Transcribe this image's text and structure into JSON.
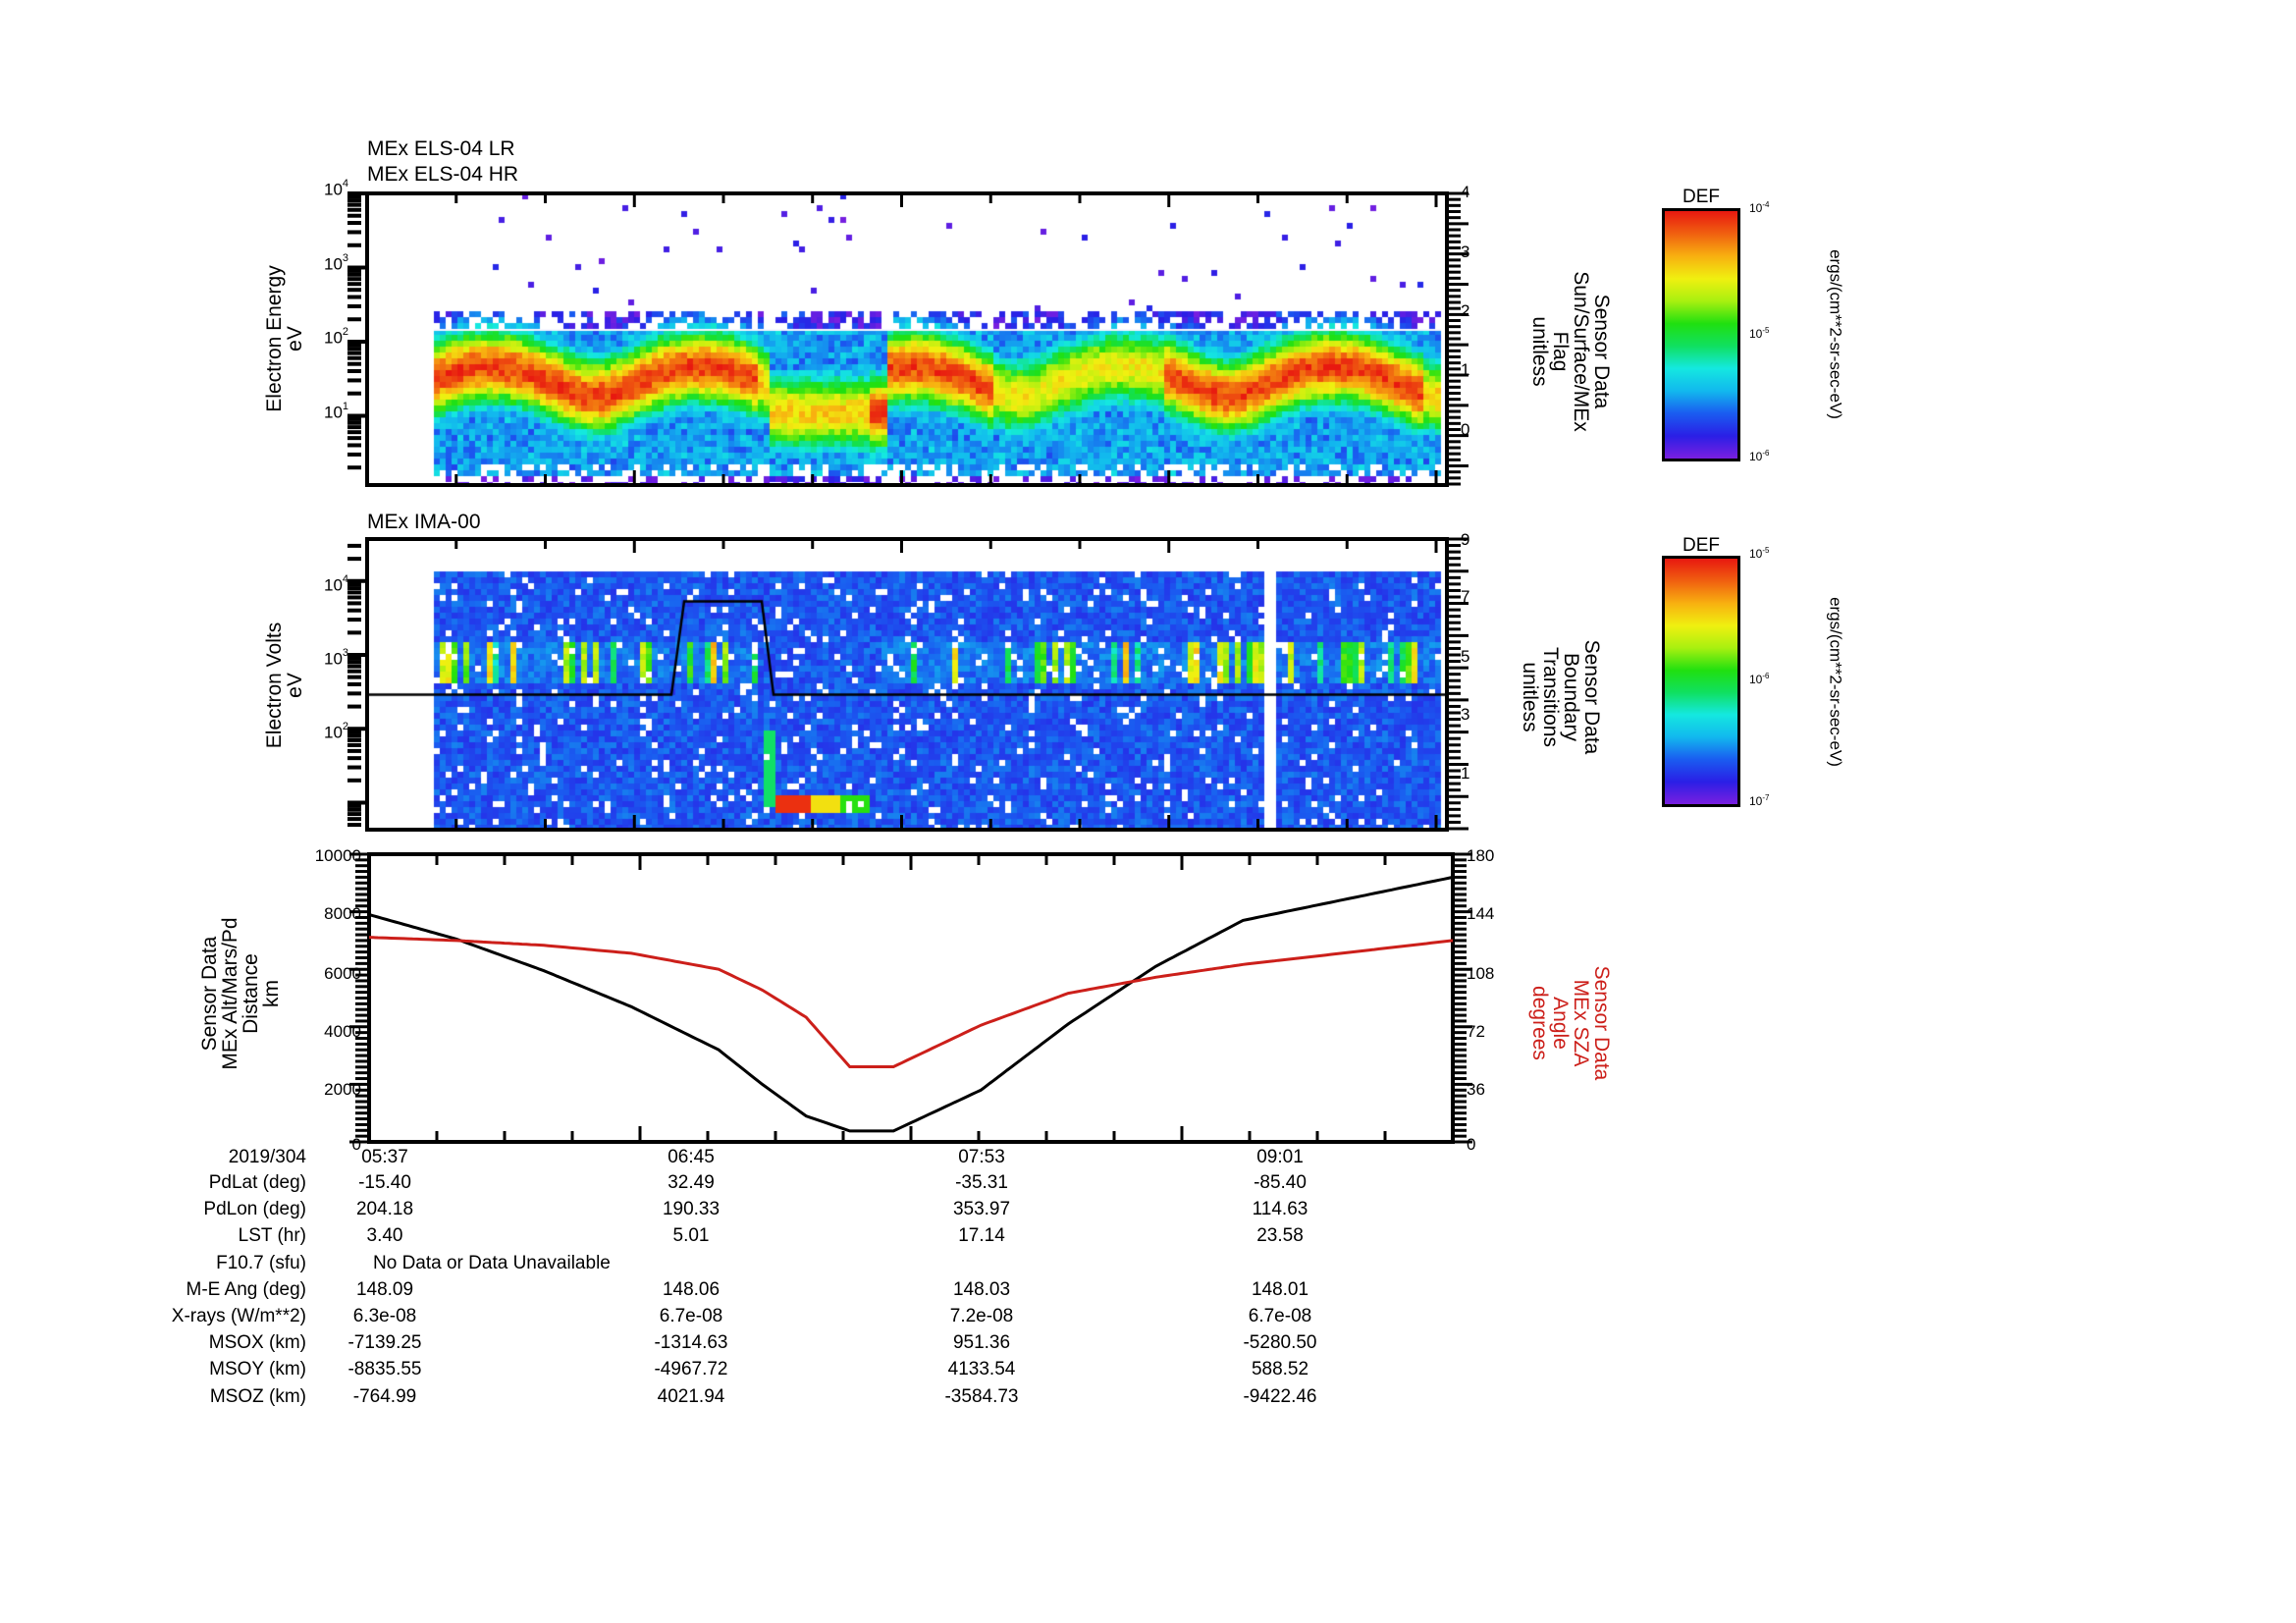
{
  "colors": {
    "frame": "#000000",
    "sza_line": "#cc1f1a",
    "alt_line": "#000000",
    "boundary_line": "#000000",
    "colormap": [
      "#7a1fe0",
      "#2a1fe6",
      "#1a5cf0",
      "#12b8ee",
      "#14e8e0",
      "#10e060",
      "#20e010",
      "#a8f010",
      "#f0f010",
      "#f8b010",
      "#f06010",
      "#e81810"
    ]
  },
  "panels": {
    "els": {
      "title_lines": [
        "MEx ELS-04 LR",
        "MEx ELS-04 HR"
      ],
      "ylabel_lines": [
        "Electron Energy",
        "eV"
      ],
      "yticks": [
        {
          "base": "10",
          "exp": "4"
        },
        {
          "base": "10",
          "exp": "3"
        },
        {
          "base": "10",
          "exp": "2"
        },
        {
          "base": "10",
          "exp": "1"
        }
      ],
      "right_ticks": [
        "4",
        "3",
        "2",
        "1",
        "0"
      ],
      "right_label_lines": [
        "Sensor Data",
        "Sun/Surface/MEx",
        "Flag",
        "unitless"
      ],
      "colorbar": {
        "title": "DEF",
        "ticks": [
          {
            "base": "10",
            "exp": "-4"
          },
          {
            "base": "10",
            "exp": "-5"
          },
          {
            "base": "10",
            "exp": "-6"
          }
        ],
        "unit": "ergs/(cm**2-sr-sec-eV)"
      }
    },
    "ima": {
      "title": "MEx IMA-00",
      "ylabel_lines": [
        "Electron Volts",
        "eV"
      ],
      "yticks": [
        {
          "base": "10",
          "exp": "4"
        },
        {
          "base": "10",
          "exp": "3"
        },
        {
          "base": "10",
          "exp": "2"
        }
      ],
      "right_ticks": [
        "9",
        "7",
        "5",
        "3",
        "1"
      ],
      "right_label_lines": [
        "Sensor Data",
        "Boundary",
        "Transitions",
        "unitless"
      ],
      "colorbar": {
        "title": "DEF",
        "ticks": [
          {
            "base": "10",
            "exp": "-5"
          },
          {
            "base": "10",
            "exp": "-6"
          },
          {
            "base": "10",
            "exp": "-7"
          }
        ],
        "unit": "ergs/(cm**2-sr-sec-eV)"
      }
    },
    "orbit": {
      "ylabel_lines": [
        "Sensor Data",
        "MEx Alt/Mars/Pd",
        "Distance",
        "km"
      ],
      "yticks": [
        "10000",
        "8000",
        "6000",
        "4000",
        "2000",
        "0"
      ],
      "right_ticks": [
        "180",
        "144",
        "108",
        "72",
        "36",
        "0"
      ],
      "right_label_lines": [
        "Sensor Data",
        "MEx SZA",
        "Angle",
        "degrees"
      ]
    }
  },
  "chart_data": [
    {
      "type": "heatmap",
      "title": "MEx ELS-04 LR / MEx ELS-04 HR",
      "ylabel": "Electron Energy (eV)",
      "yscale": "log",
      "ylim": [
        1,
        10000
      ],
      "y2label": "Sensor Data Sun/Surface/MEx Flag (unitless)",
      "y2lim": [
        -0.9,
        4
      ],
      "colorbar": {
        "label": "DEF ergs/(cm**2-sr-sec-eV)",
        "range": [
          1e-06,
          0.0001
        ],
        "scale": "log"
      },
      "x_ticks": [
        "05:37",
        "06:45",
        "07:53",
        "09:01"
      ],
      "flag_value": 1.5,
      "notes": "Main electron population ~5-100 eV with red peaks near 20-40 eV; data begins ~05:47; depleted/lower-energy region near 07:05-07:25."
    },
    {
      "type": "heatmap",
      "title": "MEx IMA-00",
      "ylabel": "Electron Volts (eV)",
      "yscale": "log",
      "ylim": [
        3,
        40000
      ],
      "y2label": "Sensor Data Boundary Transitions (unitless)",
      "y2lim": [
        -0.3,
        9
      ],
      "colorbar": {
        "label": "DEF ergs/(cm**2-sr-sec-eV)",
        "range": [
          1e-07,
          1e-05
        ],
        "scale": "log"
      },
      "x_ticks": [
        "05:37",
        "06:45",
        "07:53",
        "09:01"
      ],
      "boundary_transitions": {
        "x": [
          "05:37",
          "07:04",
          "07:06",
          "07:33",
          "07:35",
          "09:41"
        ],
        "y": [
          4,
          4,
          7,
          7,
          4,
          4
        ]
      },
      "notes": "Vertical ion bursts near 1 keV; low-energy heavy ion feature (~10-20 eV) around 07:06-07:25; data gap near 09:17."
    },
    {
      "type": "line",
      "title": "",
      "x_ticks": [
        "05:37",
        "06:45",
        "07:53",
        "09:01"
      ],
      "xlabel": "2019/304",
      "ylabel": "Sensor Data MEx Alt/Mars/Pd Distance (km)",
      "ylim": [
        0,
        10000
      ],
      "y2label": "Sensor Data MEx SZA Angle (degrees)",
      "y2lim": [
        0,
        180
      ],
      "x_minutes": [
        0,
        20,
        40,
        60,
        80,
        90,
        100,
        110,
        120,
        140,
        160,
        180,
        200,
        248
      ],
      "series": [
        {
          "name": "MEx Alt/Mars/Pd Distance",
          "axis": "left",
          "color": "#000000",
          "values": [
            7900,
            7050,
            5950,
            4700,
            3200,
            2000,
            900,
            380,
            380,
            1800,
            4100,
            6100,
            7700,
            9200
          ]
        },
        {
          "name": "MEx SZA Angle",
          "axis": "right",
          "color": "#cc1f1a",
          "values": [
            128,
            126,
            123,
            118,
            108,
            95,
            78,
            47,
            47,
            73,
            93,
            103,
            111,
            126
          ]
        }
      ],
      "grid": false
    }
  ],
  "ephemeris": {
    "date_label": "2019/304",
    "times": [
      "05:37",
      "06:45",
      "07:53",
      "09:01"
    ],
    "rows": [
      {
        "label": "PdLat (deg)",
        "values": [
          "-15.40",
          "32.49",
          "-35.31",
          "-85.40"
        ]
      },
      {
        "label": "PdLon (deg)",
        "values": [
          "204.18",
          "190.33",
          "353.97",
          "114.63"
        ]
      },
      {
        "label": "LST (hr)",
        "values": [
          "3.40",
          "5.01",
          "17.14",
          "23.58"
        ]
      },
      {
        "label": "F10.7 (sfu)",
        "span_text": "No Data or Data Unavailable"
      },
      {
        "label": "M-E Ang (deg)",
        "values": [
          "148.09",
          "148.06",
          "148.03",
          "148.01"
        ]
      },
      {
        "label": "X-rays (W/m**2)",
        "values": [
          "6.3e-08",
          "6.7e-08",
          "7.2e-08",
          "6.7e-08"
        ]
      },
      {
        "label": "MSOX (km)",
        "values": [
          "-7139.25",
          "-1314.63",
          "951.36",
          "-5280.50"
        ]
      },
      {
        "label": "MSOY (km)",
        "values": [
          "-8835.55",
          "-4967.72",
          "4133.54",
          "588.52"
        ]
      },
      {
        "label": "MSOZ (km)",
        "values": [
          "-764.99",
          "4021.94",
          "-3584.73",
          "-9422.46"
        ]
      }
    ]
  }
}
